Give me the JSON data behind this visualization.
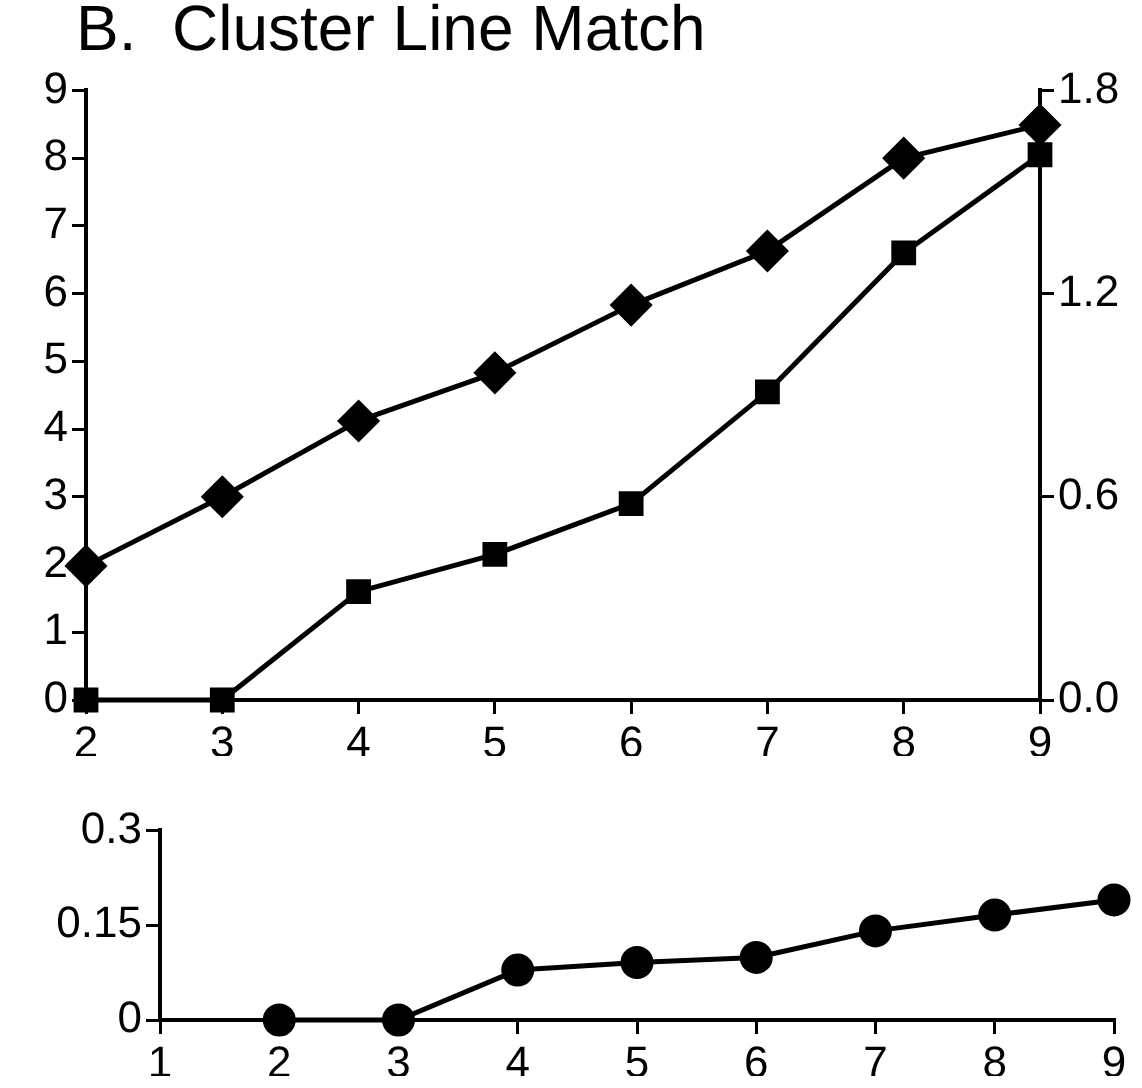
{
  "chart_data": [
    {
      "type": "line",
      "title": "B.  Cluster Line Match",
      "x": [
        2,
        3,
        4,
        5,
        6,
        7,
        8,
        9
      ],
      "xlim": [
        2,
        9
      ],
      "xticks": [
        2,
        3,
        4,
        5,
        6,
        7,
        8,
        9
      ],
      "ylim": [
        0,
        9
      ],
      "yticks": [
        0,
        1,
        2,
        3,
        4,
        5,
        6,
        7,
        8,
        9
      ],
      "y2lim": [
        0,
        1.8
      ],
      "y2ticks": [
        {
          "value": 0,
          "label": "0.0"
        },
        0.6,
        1.2,
        1.8
      ],
      "grid": false,
      "legend": false,
      "line_style": "solid",
      "series": [
        {
          "color": "#000000",
          "marker": "diamond",
          "values": [
            1.98,
            3.0,
            4.12,
            4.83,
            5.83,
            6.63,
            8.0,
            8.49
          ]
        },
        {
          "color": "#000000",
          "marker": "square",
          "axis": "y2",
          "values": [
            0,
            0,
            0.32,
            0.43,
            0.58,
            0.91,
            1.32,
            1.61
          ]
        }
      ]
    },
    {
      "type": "line",
      "x": [
        2,
        3,
        4,
        5,
        6,
        7,
        8,
        9
      ],
      "xlim": [
        1,
        9
      ],
      "xticks": [
        1,
        2,
        3,
        4,
        5,
        6,
        7,
        8,
        9
      ],
      "ylim": [
        0,
        0.3
      ],
      "yticks": [
        0,
        0.15,
        0.3
      ],
      "grid": false,
      "legend": false,
      "line_style": "solid",
      "series": [
        {
          "color": "#000000",
          "marker": "circle",
          "values": [
            0,
            0,
            0.079,
            0.091,
            0.099,
            0.141,
            0.166,
            0.19
          ]
        }
      ]
    }
  ]
}
